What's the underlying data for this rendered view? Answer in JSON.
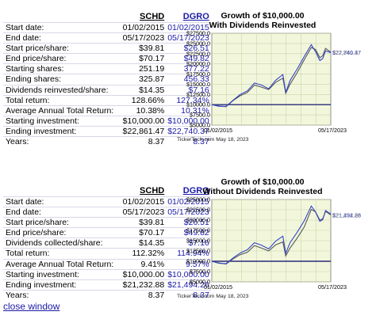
{
  "section1": {
    "headers": [
      "SCHD",
      "DGRO"
    ],
    "rows": [
      {
        "label": "Start date:",
        "schd": "01/02/2015",
        "dgro": "01/02/2015"
      },
      {
        "label": "End date:",
        "schd": "05/17/2023",
        "dgro": "05/17/2023"
      },
      {
        "label": "Start price/share:",
        "schd": "$39.81",
        "dgro": "$26.51"
      },
      {
        "label": "End price/share:",
        "schd": "$70.17",
        "dgro": "$49.82"
      },
      {
        "label": "Starting shares:",
        "schd": "251.19",
        "dgro": "377.22"
      },
      {
        "label": "Ending shares:",
        "schd": "325.87",
        "dgro": "456.33"
      },
      {
        "label": "Dividends reinvested/share:",
        "schd": "$14.35",
        "dgro": "$7.16"
      },
      {
        "label": "Total return:",
        "schd": "128.66%",
        "dgro": "127.34%"
      },
      {
        "label": "Average Annual Total Return:",
        "schd": "10.38%",
        "dgro": "10.31%"
      },
      {
        "label": "Starting investment:",
        "schd": "$10,000.00",
        "dgro": "$10,000.00"
      },
      {
        "label": "Ending investment:",
        "schd": "$22,861.47",
        "dgro": "$22,740.37"
      },
      {
        "label": "Years:",
        "schd": "8.37",
        "dgro": "8.37"
      }
    ],
    "chart": {
      "title_line1": "Growth of $10,000.00",
      "title_line2": "With Dividends Reinvested",
      "yticks": [
        "$27500.0",
        "$25000.0",
        "$22500.0",
        "$20000.0",
        "$17500.0",
        "$15000.0",
        "$12500.0",
        "$10000.0",
        "$7500.0",
        "$5000.0"
      ],
      "x_start": "01/02/2015",
      "x_end": "05/17/2023",
      "end_label_schd": "$22,861.47",
      "end_label_dgro": "$22,740.37",
      "footer": "TickerTech.com  May 18, 2023"
    }
  },
  "section2": {
    "headers": [
      "SCHD",
      "DGRO"
    ],
    "rows": [
      {
        "label": "Start date:",
        "schd": "01/02/2015",
        "dgro": "01/02/2015"
      },
      {
        "label": "End date:",
        "schd": "05/17/2023",
        "dgro": "05/17/2023"
      },
      {
        "label": "Start price/share:",
        "schd": "$39.81",
        "dgro": "$26.51"
      },
      {
        "label": "End price/share:",
        "schd": "$70.17",
        "dgro": "$49.82"
      },
      {
        "label": "Dividends collected/share:",
        "schd": "$14.35",
        "dgro": "$7.16"
      },
      {
        "label": "Total return:",
        "schd": "112.32%",
        "dgro": "114.94%"
      },
      {
        "label": "Average Annual Total Return:",
        "schd": "9.41%",
        "dgro": "9.57%"
      },
      {
        "label": "Starting investment:",
        "schd": "$10,000.00",
        "dgro": "$10,000.00"
      },
      {
        "label": "Ending investment:",
        "schd": "$21,232.88",
        "dgro": "$21,494.26"
      },
      {
        "label": "Years:",
        "schd": "8.37",
        "dgro": "8.37"
      }
    ],
    "chart": {
      "title_line1": "Growth of $10,000.00",
      "title_line2": "Without Dividends Reinvested",
      "yticks": [
        "$25000.0",
        "$22500.0",
        "$20000.0",
        "$17500.0",
        "$15000.0",
        "$12500.0",
        "$10000.0",
        "$7500.0",
        "$5000.0"
      ],
      "x_start": "01/02/2015",
      "x_end": "05/17/2023",
      "end_label_schd": "$21,232.88",
      "end_label_dgro": "$21,494.26",
      "footer": "TickerTech.com  May 18, 2023"
    }
  },
  "chart_data": [
    {
      "type": "line",
      "title": "Growth of $10,000.00 With Dividends Reinvested",
      "xlabel": "",
      "ylabel": "",
      "x": [
        2015.0,
        2015.5,
        2016.0,
        2016.5,
        2017.0,
        2017.5,
        2018.0,
        2018.5,
        2019.0,
        2019.5,
        2020.0,
        2020.2,
        2020.5,
        2021.0,
        2021.5,
        2022.0,
        2022.3,
        2022.6,
        2022.8,
        2023.0,
        2023.37
      ],
      "ylim": [
        5000,
        27500
      ],
      "series": [
        {
          "name": "SCHD",
          "color": "#555555",
          "values": [
            10000,
            9700,
            9500,
            11000,
            12200,
            13000,
            14800,
            14300,
            13700,
            15500,
            16500,
            12800,
            15000,
            17800,
            21000,
            24000,
            23500,
            21500,
            22000,
            23800,
            22861
          ]
        },
        {
          "name": "DGRO",
          "color": "#3344cc",
          "values": [
            10000,
            9600,
            9600,
            11100,
            12500,
            13400,
            15300,
            14800,
            13900,
            16000,
            17400,
            13000,
            15900,
            18700,
            21800,
            24700,
            23000,
            20800,
            21300,
            23200,
            22740
          ]
        }
      ]
    },
    {
      "type": "line",
      "title": "Growth of $10,000.00 Without Dividends Reinvested",
      "xlabel": "",
      "ylabel": "",
      "x": [
        2015.0,
        2015.5,
        2016.0,
        2016.5,
        2017.0,
        2017.5,
        2018.0,
        2018.5,
        2019.0,
        2019.5,
        2020.0,
        2020.2,
        2020.5,
        2021.0,
        2021.5,
        2022.0,
        2022.3,
        2022.6,
        2022.8,
        2023.0,
        2023.37
      ],
      "ylim": [
        5000,
        25000
      ],
      "series": [
        {
          "name": "SCHD",
          "color": "#555555",
          "values": [
            10000,
            9600,
            9300,
            10600,
            11600,
            12200,
            13800,
            13200,
            12500,
            14000,
            14700,
            11300,
            13200,
            15600,
            18300,
            22600,
            22000,
            20000,
            20300,
            22100,
            21233
          ]
        },
        {
          "name": "DGRO",
          "color": "#3344cc",
          "values": [
            10000,
            9500,
            9400,
            10800,
            12000,
            12800,
            14500,
            13900,
            13000,
            14900,
            16100,
            11900,
            14500,
            17000,
            19800,
            23400,
            22000,
            19700,
            20100,
            22300,
            21494
          ]
        }
      ]
    }
  ],
  "close_window": "close window"
}
